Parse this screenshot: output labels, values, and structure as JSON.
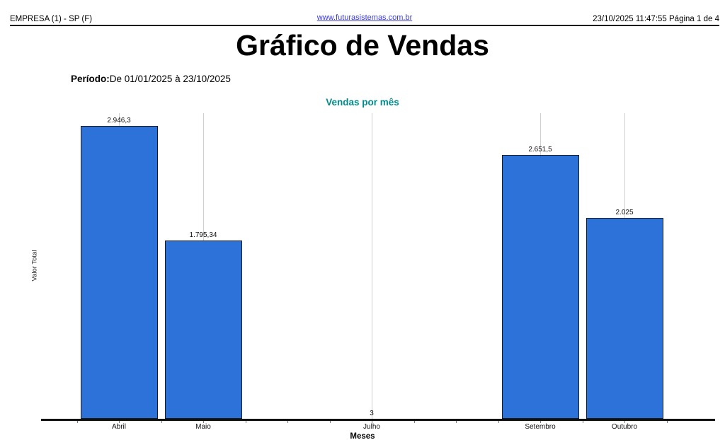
{
  "header": {
    "company": "EMPRESA (1) - SP (F)",
    "website": "www.futurasistemas.com.br",
    "datetime": "23/10/2025 11:47:55",
    "page_info": "Página 1 de 4"
  },
  "report": {
    "title": "Gráfico de Vendas",
    "period_label": "Período:",
    "period_value": "De 01/01/2025 à 23/10/2025"
  },
  "chart_data": {
    "type": "bar",
    "title": "Vendas por mês",
    "xlabel": "Meses",
    "ylabel": "Valor Total",
    "ylim": [
      0,
      3075
    ],
    "grid": "vertical-lines-at-data-points",
    "legend": "none",
    "x_axis_note": "months Junho and Agosto have no data point and are skipped (empty slots)",
    "points": [
      {
        "month": "Abril",
        "month_index": 4,
        "value": 2946.3,
        "label": "2.946,3"
      },
      {
        "month": "Maio",
        "month_index": 5,
        "value": 1795.34,
        "label": "1.795,34"
      },
      {
        "month": "Julho",
        "month_index": 7,
        "value": 3,
        "label": "3"
      },
      {
        "month": "Setembro",
        "month_index": 9,
        "value": 2651.5,
        "label": "2.651,5"
      },
      {
        "month": "Outubro",
        "month_index": 10,
        "value": 2025,
        "label": "2.025"
      }
    ]
  },
  "colors": {
    "bar_fill": "#2d72d8",
    "bar_border": "#1a1a1a",
    "chart_title": "#008c8c",
    "link": "#3b3bdd",
    "gridline": "#cfcfcf"
  }
}
